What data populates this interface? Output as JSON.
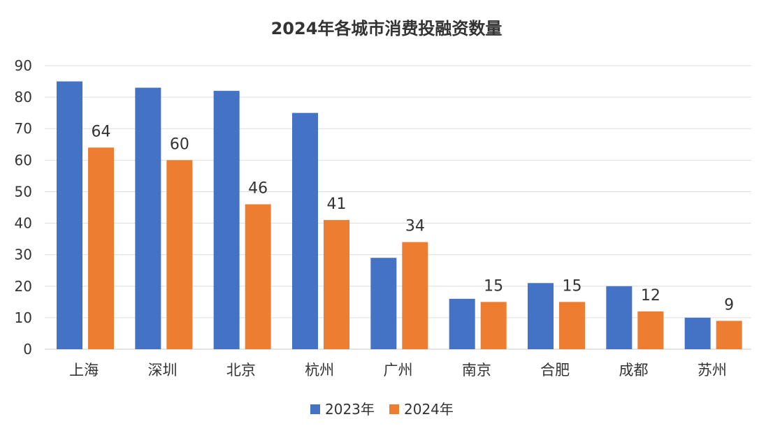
{
  "chart_data": {
    "type": "bar",
    "title": "2024年各城市消费投融资数量",
    "categories": [
      "上海",
      "深圳",
      "北京",
      "杭州",
      "广州",
      "南京",
      "合肥",
      "成都",
      "苏州"
    ],
    "series": [
      {
        "name": "2023年",
        "color": "#4472c4",
        "values": [
          85,
          83,
          82,
          75,
          29,
          16,
          21,
          20,
          10
        ],
        "show_labels": false
      },
      {
        "name": "2024年",
        "color": "#ed7d31",
        "values": [
          64,
          60,
          46,
          41,
          34,
          15,
          15,
          12,
          9
        ],
        "show_labels": true
      }
    ],
    "ylim": [
      0,
      90
    ],
    "yticks": [
      0,
      10,
      20,
      30,
      40,
      50,
      60,
      70,
      80,
      90
    ],
    "grid": true,
    "legend": "bottom-center"
  }
}
